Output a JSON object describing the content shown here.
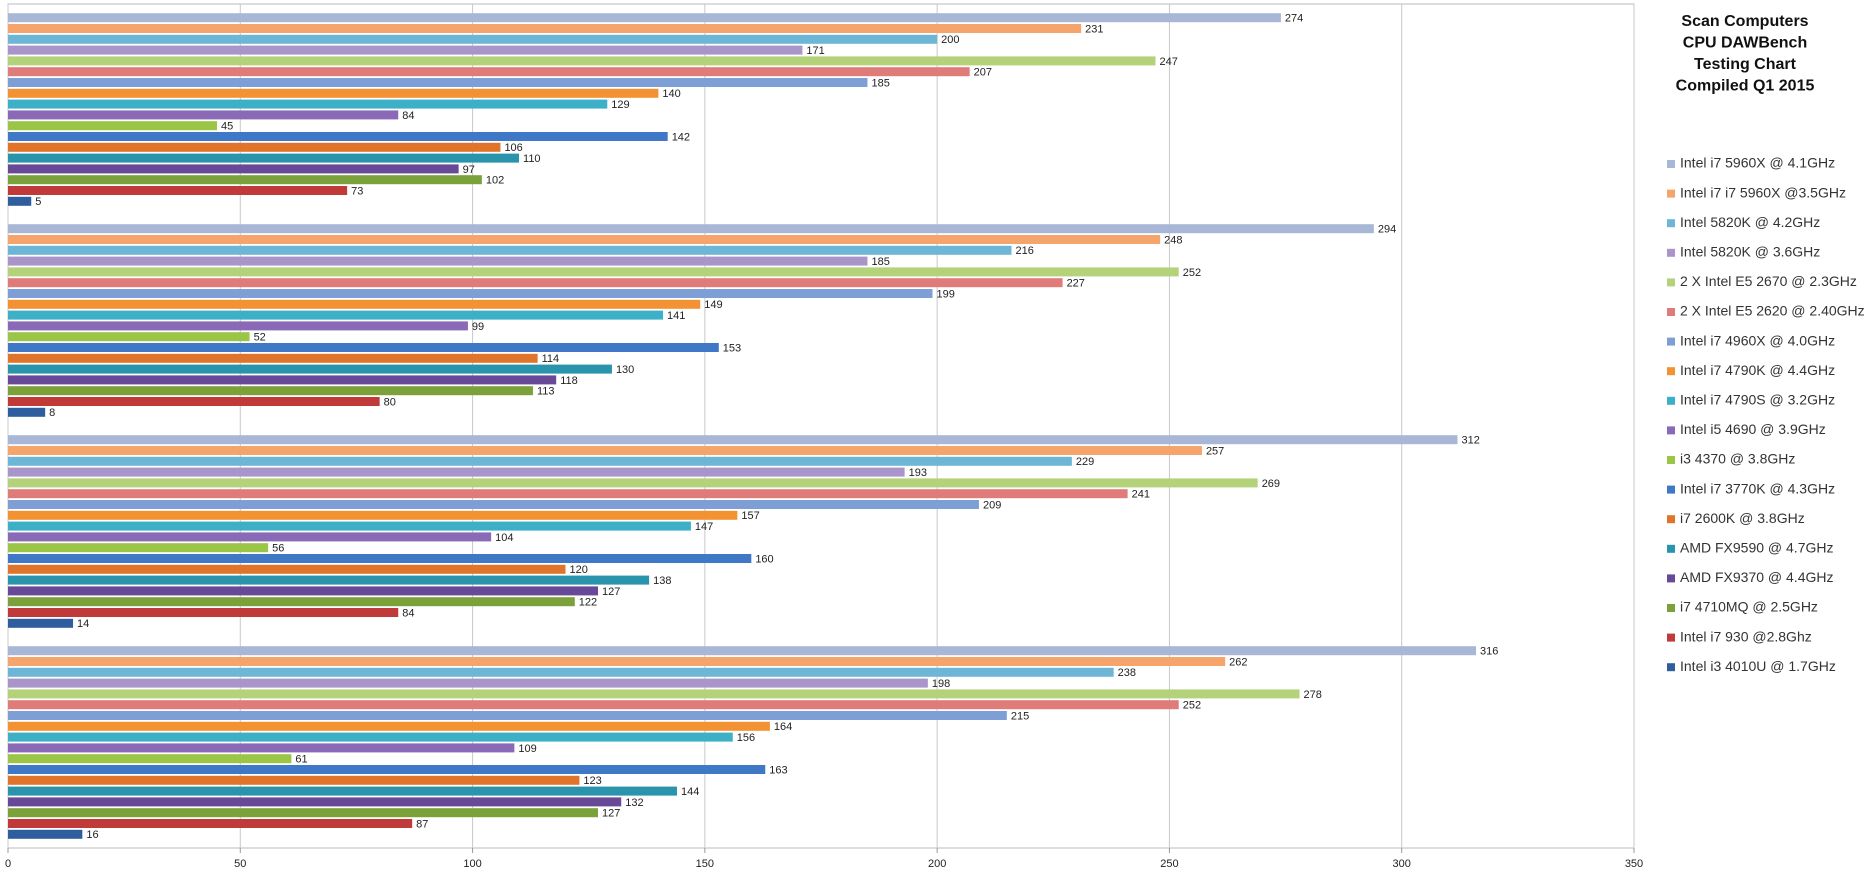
{
  "chart_data": {
    "type": "bar",
    "orientation": "horizontal",
    "title": [
      "Scan Computers",
      "CPU DAWBench",
      "Testing Chart",
      "Compiled Q1 2015"
    ],
    "categories": [
      null,
      null,
      null,
      null
    ],
    "xlim": [
      0,
      350
    ],
    "xticks": [
      0,
      50,
      100,
      150,
      200,
      250,
      300,
      350
    ],
    "grid": true,
    "legend": "right",
    "series": [
      {
        "name": "Intel i7 5960X @ 4.1GHz",
        "color": "#a9b7d6",
        "values": [
          274,
          294,
          312,
          316
        ]
      },
      {
        "name": "Intel i7 i7 5960X @3.5GHz",
        "color": "#f5a56c",
        "values": [
          231,
          248,
          257,
          262
        ]
      },
      {
        "name": "Intel 5820K @ 4.2GHz",
        "color": "#6db6d6",
        "values": [
          200,
          216,
          229,
          238
        ]
      },
      {
        "name": "Intel 5820K @ 3.6GHz",
        "color": "#a995c9",
        "values": [
          171,
          185,
          193,
          198
        ]
      },
      {
        "name": "2 X Intel E5 2670 @ 2.3GHz",
        "color": "#b4d27a",
        "values": [
          247,
          252,
          269,
          278
        ]
      },
      {
        "name": "2 X Intel E5 2620 @ 2.40GHz",
        "color": "#df7b79",
        "values": [
          207,
          227,
          241,
          252
        ]
      },
      {
        "name": "Intel i7 4960X @ 4.0GHz",
        "color": "#7e9fd5",
        "values": [
          185,
          199,
          209,
          215
        ]
      },
      {
        "name": "Intel i7 4790K @ 4.4GHz",
        "color": "#f39232",
        "values": [
          140,
          149,
          157,
          164
        ]
      },
      {
        "name": "Intel i7 4790S @ 3.2GHz",
        "color": "#3db0c8",
        "values": [
          129,
          141,
          147,
          156
        ]
      },
      {
        "name": "Intel i5 4690 @ 3.9GHz",
        "color": "#8a6ab7",
        "values": [
          84,
          99,
          104,
          109
        ]
      },
      {
        "name": "i3 4370 @ 3.8GHz",
        "color": "#9bc546",
        "values": [
          45,
          52,
          56,
          61
        ]
      },
      {
        "name": "Intel i7 3770K @ 4.3GHz",
        "color": "#3e78c6",
        "values": [
          142,
          153,
          160,
          163
        ]
      },
      {
        "name": "i7 2600K @ 3.8GHz",
        "color": "#df742a",
        "values": [
          106,
          114,
          120,
          123
        ]
      },
      {
        "name": "AMD FX9590 @ 4.7GHz",
        "color": "#2a94ac",
        "values": [
          110,
          130,
          138,
          144
        ]
      },
      {
        "name": "AMD FX9370 @ 4.4GHz",
        "color": "#684997",
        "values": [
          97,
          118,
          127,
          132
        ]
      },
      {
        "name": "i7 4710MQ @ 2.5GHz",
        "color": "#7ba23a",
        "values": [
          102,
          113,
          122,
          127
        ]
      },
      {
        "name": "Intel i7 930 @2.8Ghz",
        "color": "#bf3a39",
        "values": [
          73,
          80,
          84,
          87
        ]
      },
      {
        "name": "Intel i3 4010U @ 1.7GHz",
        "color": "#2f5e9e",
        "values": [
          5,
          8,
          14,
          16
        ]
      }
    ]
  }
}
